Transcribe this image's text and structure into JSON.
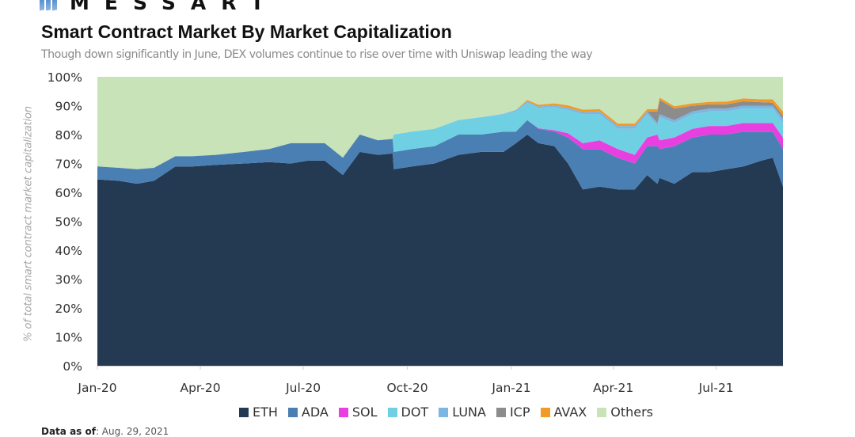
{
  "header": {
    "brand": "MESSART",
    "title": "Smart Contract Market By Market Capitalization",
    "subtitle": "Though down significantly in June, DEX volumes continue to rise over time with Uniswap leading the way"
  },
  "footer": {
    "label": "Data as of",
    "value": ": Aug. 29, 2021"
  },
  "chart_data": {
    "type": "area",
    "stacked": true,
    "title": "Smart Contract Market By Market Capitalization",
    "ylabel": "% of total smart contract market capitalization",
    "xlabel": "",
    "ylim": [
      0,
      100
    ],
    "yticks": [
      "0%",
      "10%",
      "20%",
      "30%",
      "40%",
      "50%",
      "60%",
      "70%",
      "80%",
      "90%",
      "100%"
    ],
    "xticks": [
      "Jan-20",
      "Apr-20",
      "Jul-20",
      "Oct-20",
      "Jan-21",
      "Apr-21",
      "Jul-21"
    ],
    "xrange": [
      "2020-01-01",
      "2021-08-29"
    ],
    "grid": false,
    "legend_position": "bottom",
    "x": [
      "2020-01-01",
      "2020-01-20",
      "2020-02-05",
      "2020-02-20",
      "2020-03-10",
      "2020-03-25",
      "2020-04-15",
      "2020-05-10",
      "2020-06-01",
      "2020-06-20",
      "2020-07-05",
      "2020-07-20",
      "2020-08-05",
      "2020-08-20",
      "2020-09-05",
      "2020-09-18",
      "2020-09-19",
      "2020-10-05",
      "2020-10-25",
      "2020-11-15",
      "2020-12-05",
      "2020-12-25",
      "2021-01-05",
      "2021-01-15",
      "2021-01-25",
      "2021-02-08",
      "2021-02-20",
      "2021-03-05",
      "2021-03-20",
      "2021-04-05",
      "2021-04-20",
      "2021-05-01",
      "2021-05-10",
      "2021-05-12",
      "2021-05-25",
      "2021-06-10",
      "2021-06-25",
      "2021-07-10",
      "2021-07-25",
      "2021-08-10",
      "2021-08-20",
      "2021-08-29"
    ],
    "series": [
      {
        "name": "ETH",
        "color": "#243a53",
        "values": [
          64.5,
          64,
          63,
          64,
          69,
          69,
          69.5,
          70,
          70.5,
          70,
          71,
          71,
          66,
          74,
          73,
          73.5,
          68,
          69,
          70,
          73,
          74,
          74,
          77,
          80,
          77,
          76,
          70,
          61,
          62,
          61,
          61,
          66,
          63,
          65,
          63,
          67,
          67,
          68,
          69,
          71,
          72,
          62
        ]
      },
      {
        "name": "ADA",
        "color": "#4a7fb3",
        "values": [
          4.5,
          4.5,
          5,
          4.5,
          3.5,
          3.5,
          3.5,
          4,
          4.5,
          7,
          6,
          6,
          6,
          6,
          5,
          5,
          6,
          6,
          6,
          7,
          6,
          7,
          4,
          5,
          5,
          5,
          9,
          14,
          13,
          11,
          9,
          10,
          13,
          10,
          13,
          12,
          13,
          12,
          12,
          10,
          9,
          13
        ]
      },
      {
        "name": "SOL",
        "color": "#e83fe0",
        "values": [
          0,
          0,
          0,
          0,
          0,
          0,
          0,
          0,
          0,
          0,
          0,
          0,
          0,
          0,
          0,
          0,
          0,
          0,
          0,
          0,
          0,
          0,
          0,
          0,
          0.2,
          0.5,
          1.5,
          2,
          3,
          3,
          3,
          3,
          4,
          3,
          3,
          3,
          3,
          3,
          3,
          3,
          3,
          4
        ]
      },
      {
        "name": "DOT",
        "color": "#6fd0e3",
        "values": [
          0,
          0,
          0,
          0,
          0,
          0,
          0,
          0,
          0,
          0,
          0,
          0,
          0,
          0,
          0,
          0,
          6,
          6,
          6,
          5,
          6,
          6,
          7,
          6,
          7,
          8,
          8,
          10,
          9,
          7,
          9,
          8,
          3,
          8,
          5,
          5,
          5,
          5,
          5,
          5,
          5,
          5
        ]
      },
      {
        "name": "LUNA",
        "color": "#7cb6e2",
        "values": [
          0,
          0,
          0,
          0,
          0,
          0,
          0,
          0,
          0,
          0,
          0,
          0,
          0,
          0,
          0,
          0,
          0,
          0,
          0,
          0,
          0,
          0.2,
          0.5,
          0.5,
          0.5,
          0.6,
          0.8,
          0.8,
          1,
          1,
          1,
          1,
          1,
          1,
          1,
          1,
          1,
          1,
          1,
          1,
          1,
          1.5
        ]
      },
      {
        "name": "ICP",
        "color": "#8c8c8c",
        "values": [
          0,
          0,
          0,
          0,
          0,
          0,
          0,
          0,
          0,
          0,
          0,
          0,
          0,
          0,
          0,
          0,
          0,
          0,
          0,
          0,
          0,
          0,
          0,
          0,
          0,
          0,
          0,
          0,
          0,
          0,
          0,
          0,
          4,
          5,
          4,
          2,
          1.5,
          1.5,
          1.5,
          1.2,
          1,
          1
        ]
      },
      {
        "name": "AVAX",
        "color": "#f09a28",
        "values": [
          0,
          0,
          0,
          0,
          0,
          0,
          0,
          0,
          0,
          0,
          0,
          0,
          0,
          0,
          0,
          0,
          0,
          0,
          0,
          0,
          0,
          0,
          0,
          0.5,
          0.6,
          0.7,
          0.8,
          0.8,
          0.8,
          0.8,
          0.8,
          0.8,
          0.8,
          0.8,
          0.8,
          0.8,
          0.8,
          0.9,
          1,
          1,
          1.2,
          1.5
        ]
      },
      {
        "name": "Others",
        "color": "#c8e3b8",
        "values": [
          31,
          31.5,
          32,
          31.5,
          27.5,
          27.5,
          27,
          26,
          25,
          23,
          23,
          23,
          28,
          20,
          22,
          21.5,
          20,
          19,
          18,
          15,
          14,
          12.8,
          11.5,
          8,
          9.7,
          9.2,
          9.9,
          11.4,
          11.2,
          16.2,
          16.2,
          10.2,
          11.2,
          7.2,
          10.2,
          9.2,
          8.7,
          8.6,
          7.5,
          7.8,
          7.8,
          11
        ]
      }
    ]
  }
}
